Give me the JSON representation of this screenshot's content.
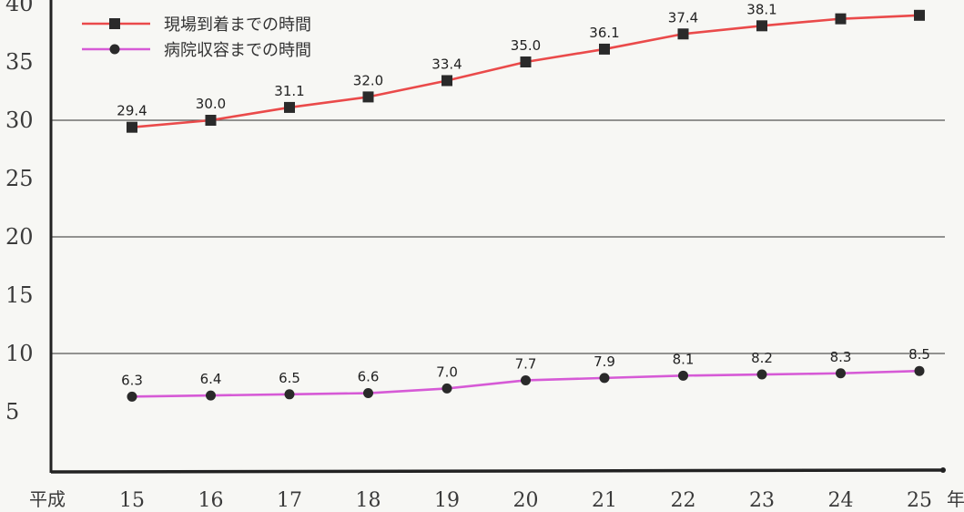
{
  "chart_data": {
    "type": "line",
    "title": "",
    "xlabel_prefix": "平成",
    "xlabel_unit": "年",
    "categories": [
      "15",
      "16",
      "17",
      "18",
      "19",
      "20",
      "21",
      "22",
      "23",
      "24",
      "25"
    ],
    "yticks": [
      "5",
      "10",
      "15",
      "20",
      "25",
      "30",
      "35",
      "40"
    ],
    "ylim": [
      0,
      40
    ],
    "grid": "horizontal at 10, 20, 30",
    "legend_position": "top-left",
    "series": [
      {
        "name": "現場到着までの時間",
        "color": "#ea4a4a",
        "marker": "square",
        "values": [
          29.4,
          30.0,
          31.1,
          32.0,
          33.4,
          35.0,
          36.1,
          37.4,
          38.1,
          38.7,
          39.0
        ],
        "labels": [
          "29.4",
          "30.0",
          "31.1",
          "32.0",
          "33.4",
          "35.0",
          "36.1",
          "37.4",
          "38.1",
          null,
          null
        ]
      },
      {
        "name": "病院収容までの時間",
        "color": "#d65ad6",
        "marker": "circle",
        "values": [
          6.3,
          6.4,
          6.5,
          6.6,
          7.0,
          7.7,
          7.9,
          8.1,
          8.2,
          8.3,
          8.5
        ],
        "labels": [
          "6.3",
          "6.4",
          "6.5",
          "6.6",
          "7.0",
          "7.7",
          "7.9",
          "8.1",
          "8.2",
          "8.3",
          "8.5"
        ]
      }
    ]
  }
}
